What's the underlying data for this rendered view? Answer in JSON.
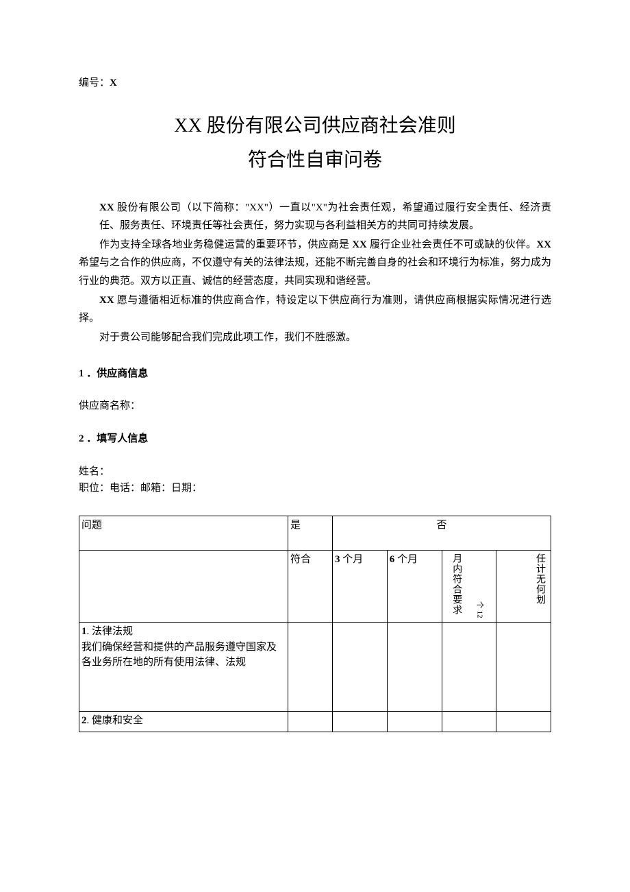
{
  "doc_number_label": "编号：",
  "doc_number_value": "X",
  "title_line1": "XX 股份有限公司供应商社会准则",
  "title_line2": "符合性自审问卷",
  "paragraphs": {
    "p1_prefix_bold": "XX",
    "p1_rest": " 股份有限公司（以下简称：\"XX\"）一直以\"X\"为社会责任观，希望通过履行安全责任、经济责任、服务责任、环境责任等社会责任，努力实现与各利益相关方的共同可持续发展。",
    "p2_a": "作为支持全球各地业务稳健运营的重要环节，供应商是 ",
    "p2_b_bold": "XX",
    "p2_c": " 履行企业社会责任不可或缺的伙伴。",
    "p2_d_bold": "XX",
    "p2_e": " 希望与之合作的供应商，不仅遵守有关的法律法规，还能不断完善自身的社会和环境行为标准，努力成为行业的典范。双方以正直、诚信的经营态度，共同实现和谐经营。",
    "p3_a_bold": "XX",
    "p3_b": " 愿与遵循相近标准的供应商合作，特设定以下供应商行为准则，请供应商根据实际情况进行选择。",
    "p4": "对于贵公司能够配合我们完成此项工作，我们不胜感激。"
  },
  "section1_heading": "1 ．供应商信息",
  "section1_field": "供应商名称：",
  "section2_heading": "2 ．填写人信息",
  "section2_fields_line1": "姓名：",
  "section2_fields_line2": "职位：电话：邮箱：日期：",
  "table": {
    "header": {
      "question": "问题",
      "yes": "是",
      "no": "否",
      "conform": "符合",
      "three_month": "3 个月",
      "six_month": "6 个月",
      "twelve_month": "月内符合要求",
      "twelve_month_num": "个 12",
      "no_plan": "任计无何划"
    },
    "rows": [
      {
        "num_bold": "1",
        "title": ". 法律法规",
        "desc": "我们确保经营和提供的产品服务遵守国家及各业务所在地的所有使用法律、法规"
      },
      {
        "num_bold": "2",
        "title": ". 健康和安全",
        "desc": ""
      }
    ]
  }
}
